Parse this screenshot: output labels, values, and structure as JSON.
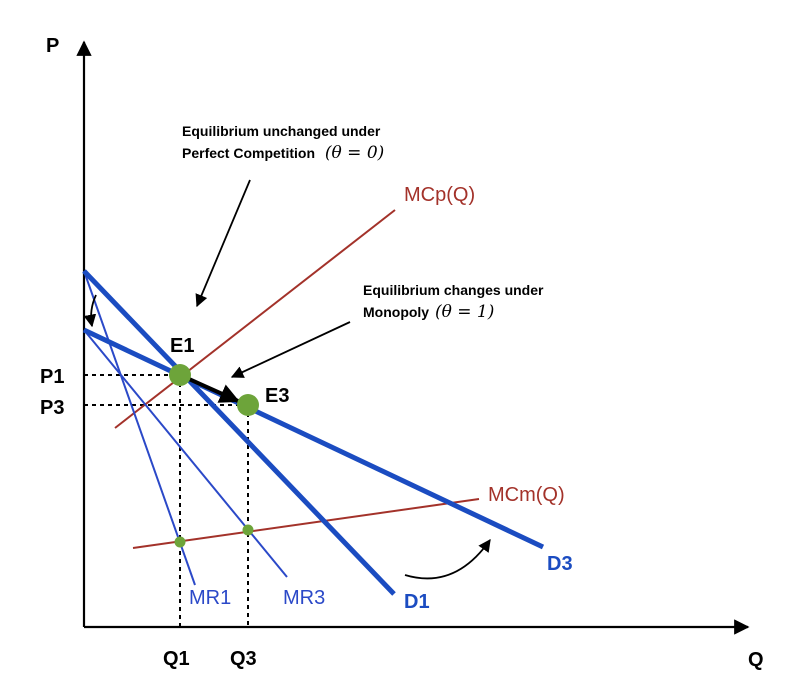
{
  "colors": {
    "demand": "#1b4cc1",
    "marginal_revenue": "#2b49c8",
    "marginal_cost": "#a3322a",
    "equilibrium_point": "#6da43a",
    "axis": "#000000"
  },
  "axes": {
    "y_label": "P",
    "x_label": "Q"
  },
  "curves": {
    "d1": "D1",
    "d3": "D3",
    "mr1": "MR1",
    "mr3": "MR3",
    "mcp": "MCp(Q)",
    "mcm": "MCm(Q)"
  },
  "points": {
    "e1": "E1",
    "e3": "E3"
  },
  "ticks": {
    "p1": "P1",
    "p3": "P3",
    "q1": "Q1",
    "q3": "Q3"
  },
  "annotations": {
    "perfect_line1": "Equilibrium unchanged under",
    "perfect_line2": "Perfect Competition",
    "perfect_math": "(θ = 0)",
    "monopoly_line1": "Equilibrium changes under",
    "monopoly_line2": "Monopoly",
    "monopoly_math": "(θ = 1)"
  },
  "icons": [
    "curved-arrow-icon",
    "arrow-icon",
    "equilibrium-dot-icon"
  ]
}
